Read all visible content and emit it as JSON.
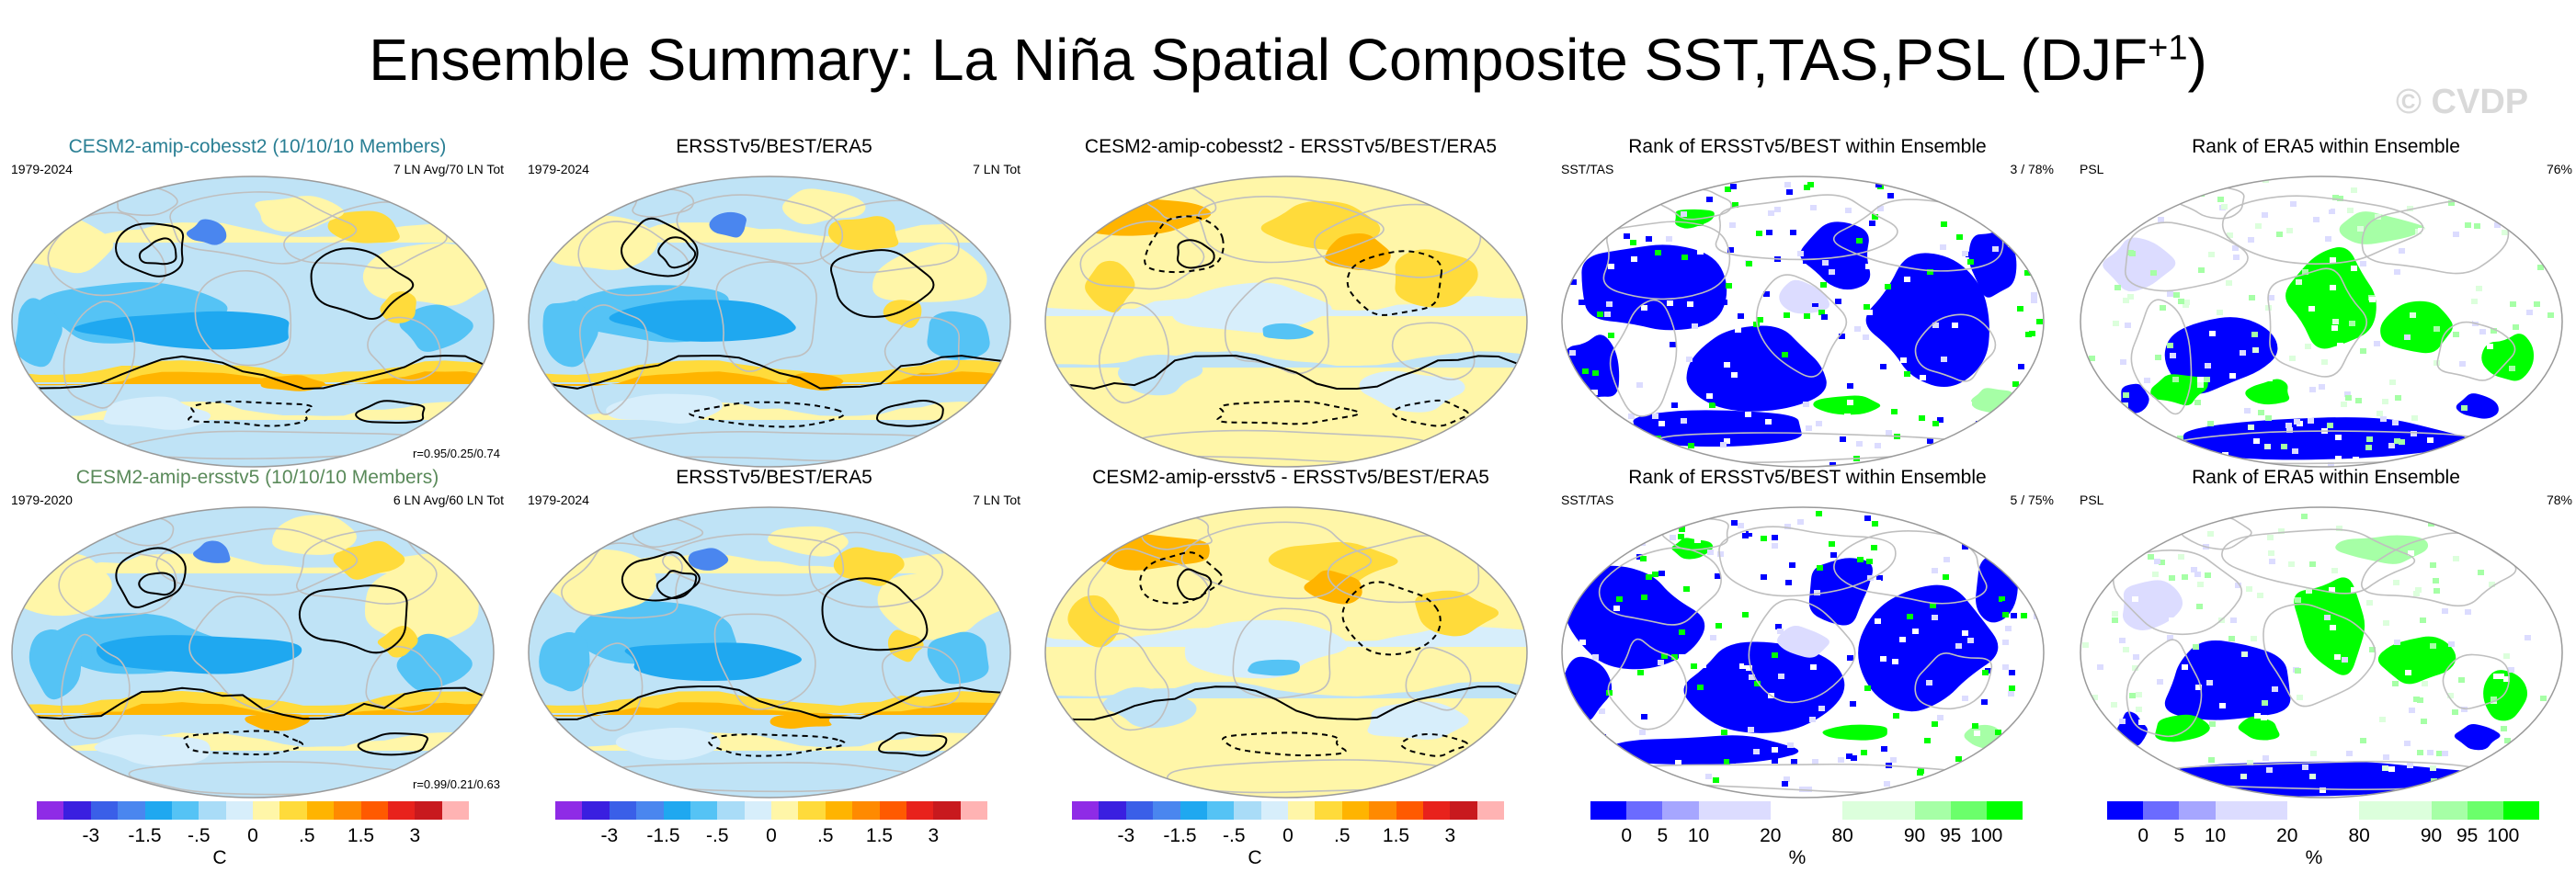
{
  "figure": {
    "title_main": "Ensemble Summary: La Niña Spatial Composite SST,TAS,PSL (DJF",
    "title_sup": "+1",
    "title_end": ")",
    "watermark": "© CVDP"
  },
  "colors": {
    "ocean_fill": "#ffffff",
    "coast": "#bfbfbf",
    "contour": "#000000"
  },
  "chart_data": [
    {
      "type": "heatmap",
      "title": "CESM2-amip-cobesst2 (10/10/10 Members)",
      "title_color": "#2a7f94",
      "top_left": "1979-2024",
      "top_right": "7 LN Avg/70 LN Tot",
      "bottom_right": "r=0.95/0.25/0.74",
      "style": "anomaly",
      "variant": 1
    },
    {
      "type": "heatmap",
      "title": "ERSSTv5/BEST/ERA5",
      "top_left": "1979-2024",
      "top_right": "7 LN Tot",
      "bottom_right": "",
      "style": "anomaly",
      "variant": 2
    },
    {
      "type": "heatmap",
      "title": "CESM2-amip-cobesst2 - ERSSTv5/BEST/ERA5",
      "top_left": "",
      "top_right": "",
      "bottom_right": "",
      "style": "difference",
      "variant": 3
    },
    {
      "type": "heatmap",
      "title": "Rank of ERSSTv5/BEST within Ensemble",
      "top_left": "SST/TAS",
      "top_right": "3 /  78%",
      "bottom_right": "",
      "style": "rank_sst",
      "variant": 4
    },
    {
      "type": "heatmap",
      "title": "Rank of ERA5 within Ensemble",
      "top_left": "PSL",
      "top_right": "76%",
      "bottom_right": "",
      "style": "rank_psl",
      "variant": 5
    },
    {
      "type": "heatmap",
      "title": "CESM2-amip-ersstv5 (10/10/10 Members)",
      "title_color": "#5a8a5a",
      "top_left": "1979-2020",
      "top_right": "6 LN Avg/60 LN Tot",
      "bottom_right": "r=0.99/0.21/0.63",
      "style": "anomaly",
      "variant": 6
    },
    {
      "type": "heatmap",
      "title": "ERSSTv5/BEST/ERA5",
      "top_left": "1979-2024",
      "top_right": "7 LN Tot",
      "bottom_right": "",
      "style": "anomaly",
      "variant": 7
    },
    {
      "type": "heatmap",
      "title": "CESM2-amip-ersstv5 - ERSSTv5/BEST/ERA5",
      "top_left": "",
      "top_right": "",
      "bottom_right": "",
      "style": "difference",
      "variant": 8
    },
    {
      "type": "heatmap",
      "title": "Rank of ERSSTv5/BEST within Ensemble",
      "top_left": "SST/TAS",
      "top_right": "5 /  75%",
      "bottom_right": "",
      "style": "rank_sst",
      "variant": 9
    },
    {
      "type": "heatmap",
      "title": "Rank of ERA5 within Ensemble",
      "top_left": "PSL",
      "top_right": "78%",
      "bottom_right": "",
      "style": "rank_psl",
      "variant": 10
    }
  ],
  "colorbars": [
    {
      "type": "anomaly",
      "colors": [
        "#8f2be6",
        "#3a1fe0",
        "#3a5fe8",
        "#4a86ef",
        "#1fa8f0",
        "#55c3f5",
        "#a9dcf7",
        "#d7eefb",
        "#fff6a8",
        "#ffdb3b",
        "#ffb400",
        "#ff8a00",
        "#ff5a00",
        "#e8221c",
        "#c8191e",
        "#ffb3b3"
      ],
      "ticks": [
        {
          "label": "-3",
          "index": 2
        },
        {
          "label": "-1.5",
          "index": 4
        },
        {
          "label": "-.5",
          "index": 6
        },
        {
          "label": "0",
          "index": 8
        },
        {
          "label": ".5",
          "index": 10
        },
        {
          "label": "1.5",
          "index": 12
        },
        {
          "label": "3",
          "index": 14
        }
      ],
      "unit": "C"
    },
    {
      "type": "anomaly",
      "colors": [
        "#8f2be6",
        "#3a1fe0",
        "#3a5fe8",
        "#4a86ef",
        "#1fa8f0",
        "#55c3f5",
        "#a9dcf7",
        "#d7eefb",
        "#fff6a8",
        "#ffdb3b",
        "#ffb400",
        "#ff8a00",
        "#ff5a00",
        "#e8221c",
        "#c8191e",
        "#ffb3b3"
      ],
      "ticks": [
        {
          "label": "-3",
          "index": 2
        },
        {
          "label": "-1.5",
          "index": 4
        },
        {
          "label": "-.5",
          "index": 6
        },
        {
          "label": "0",
          "index": 8
        },
        {
          "label": ".5",
          "index": 10
        },
        {
          "label": "1.5",
          "index": 12
        },
        {
          "label": "3",
          "index": 14
        }
      ],
      "unit": ""
    },
    {
      "type": "anomaly",
      "colors": [
        "#8f2be6",
        "#3a1fe0",
        "#3a5fe8",
        "#4a86ef",
        "#1fa8f0",
        "#55c3f5",
        "#a9dcf7",
        "#d7eefb",
        "#fff6a8",
        "#ffdb3b",
        "#ffb400",
        "#ff8a00",
        "#ff5a00",
        "#e8221c",
        "#c8191e",
        "#ffb3b3"
      ],
      "ticks": [
        {
          "label": "-3",
          "index": 2
        },
        {
          "label": "-1.5",
          "index": 4
        },
        {
          "label": "-.5",
          "index": 6
        },
        {
          "label": "0",
          "index": 8
        },
        {
          "label": ".5",
          "index": 10
        },
        {
          "label": "1.5",
          "index": 12
        },
        {
          "label": "3",
          "index": 14
        }
      ],
      "unit": "C"
    },
    {
      "type": "rank",
      "colors": [
        "#0000ff",
        "#6b6bff",
        "#a6a6ff",
        "#dcdcff",
        "#dcdcff",
        "#ffffff",
        "#ffffff",
        "#dcffdc",
        "#dcffdc",
        "#a6ffa6",
        "#6bff6b",
        "#00ff00"
      ],
      "ticks": [
        {
          "label": "0",
          "index": 1
        },
        {
          "label": "5",
          "index": 2
        },
        {
          "label": "10",
          "index": 3
        },
        {
          "label": "20",
          "index": 5
        },
        {
          "label": "80",
          "index": 7
        },
        {
          "label": "90",
          "index": 9
        },
        {
          "label": "95",
          "index": 10
        },
        {
          "label": "100",
          "index": 11
        }
      ],
      "unit": "%"
    },
    {
      "type": "rank",
      "colors": [
        "#0000ff",
        "#6b6bff",
        "#a6a6ff",
        "#dcdcff",
        "#dcdcff",
        "#ffffff",
        "#ffffff",
        "#dcffdc",
        "#dcffdc",
        "#a6ffa6",
        "#6bff6b",
        "#00ff00"
      ],
      "ticks": [
        {
          "label": "0",
          "index": 1
        },
        {
          "label": "5",
          "index": 2
        },
        {
          "label": "10",
          "index": 3
        },
        {
          "label": "20",
          "index": 5
        },
        {
          "label": "80",
          "index": 7
        },
        {
          "label": "90",
          "index": 9
        },
        {
          "label": "95",
          "index": 10
        },
        {
          "label": "100",
          "index": 11
        }
      ],
      "unit": "%"
    }
  ]
}
